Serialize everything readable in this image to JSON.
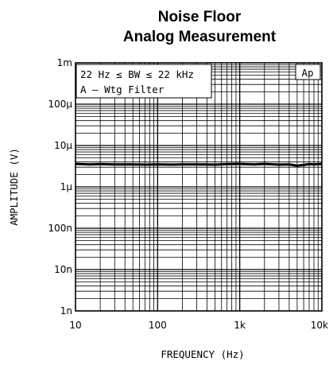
{
  "chart_data": {
    "type": "line",
    "title_line1": "Noise Floor",
    "title_line2": "Analog Measurement",
    "xlabel": "FREQUENCY (Hz)",
    "ylabel": "AMPLITUDE (V)",
    "x_scale": "log",
    "y_scale": "log",
    "xlim": [
      10,
      10000
    ],
    "ylim": [
      1e-09,
      0.001
    ],
    "grid": true,
    "x_ticks": [
      {
        "value": 10,
        "label": "10"
      },
      {
        "value": 100,
        "label": "100"
      },
      {
        "value": 1000,
        "label": "1k"
      },
      {
        "value": 10000,
        "label": "10k"
      }
    ],
    "y_ticks": [
      {
        "value": 0.001,
        "label": "1m"
      },
      {
        "value": 0.0001,
        "label": "100μ"
      },
      {
        "value": 1e-05,
        "label": "10μ"
      },
      {
        "value": 1e-06,
        "label": "1μ"
      },
      {
        "value": 1e-07,
        "label": "100n"
      },
      {
        "value": 1e-08,
        "label": "10n"
      },
      {
        "value": 1e-09,
        "label": "1n"
      }
    ],
    "annotation_line1": "22 Hz ≤ BW ≤ 22 kHz",
    "annotation_line2": "A – Wtg Filter",
    "badge": "Ap",
    "series": [
      {
        "color": "#000000",
        "x": [
          10,
          15,
          20,
          30,
          50,
          70,
          100,
          150,
          200,
          300,
          500,
          700,
          1000,
          1500,
          2000,
          3000,
          4000,
          5000,
          6000,
          7000,
          8000,
          10000
        ],
        "y": [
          3.6e-06,
          3.5e-06,
          3.55e-06,
          3.5e-06,
          3.5e-06,
          3.45e-06,
          3.5e-06,
          3.45e-06,
          3.5e-06,
          3.5e-06,
          3.45e-06,
          3.55e-06,
          3.6e-06,
          3.5e-06,
          3.6e-06,
          3.45e-06,
          3.5e-06,
          3.25e-06,
          3.4e-06,
          3.55e-06,
          3.5e-06,
          3.6e-06
        ]
      }
    ]
  }
}
